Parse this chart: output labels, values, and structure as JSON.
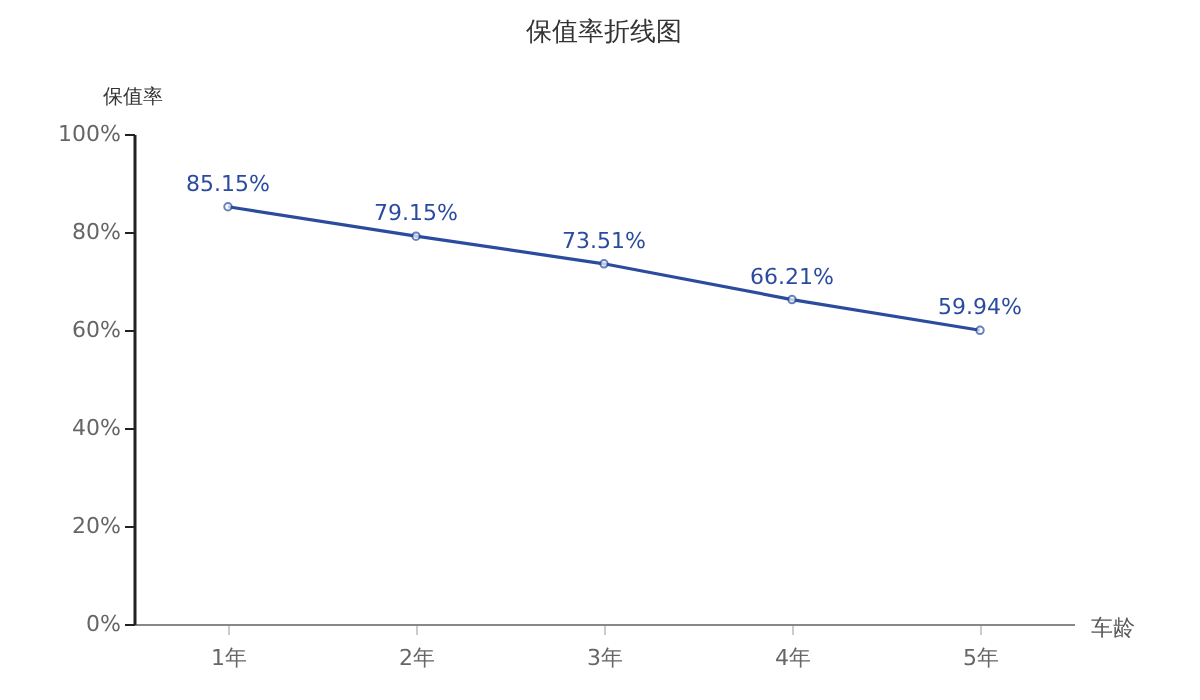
{
  "chart_data": {
    "type": "line",
    "title": "保值率折线图",
    "xlabel": "车龄",
    "ylabel": "保值率",
    "categories": [
      "1年",
      "2年",
      "3年",
      "4年",
      "5年"
    ],
    "series": [
      {
        "color": "#2b4c9e",
        "values": [
          85.15,
          79.15,
          73.51,
          66.21,
          59.94
        ],
        "value_labels": [
          "85.15%",
          "79.15%",
          "73.51%",
          "66.21%",
          "59.94%"
        ]
      }
    ],
    "ylim": [
      0,
      100
    ],
    "yticks": [
      {
        "value": 0,
        "label": "0%"
      },
      {
        "value": 20,
        "label": "20%"
      },
      {
        "value": 40,
        "label": "40%"
      },
      {
        "value": 60,
        "label": "60%"
      },
      {
        "value": 80,
        "label": "80%"
      },
      {
        "value": 100,
        "label": "100%"
      }
    ],
    "grid": false,
    "legend": false,
    "marker": "circle",
    "line_style": "solid"
  }
}
